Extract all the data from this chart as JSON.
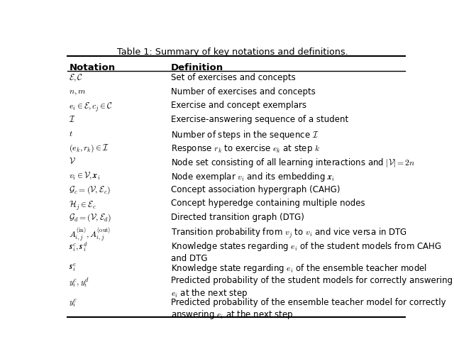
{
  "title": "Table 1: Summary of key notations and definitions.",
  "col1_header": "Notation",
  "col2_header": "Definition",
  "rows": [
    [
      "$\\mathcal{E}, \\mathcal{C}$",
      "Set of exercises and concepts"
    ],
    [
      "$n, m$",
      "Number of exercises and concepts"
    ],
    [
      "$e_i \\in \\mathcal{E}, c_j \\in \\mathcal{C}$",
      "Exercise and concept exemplars"
    ],
    [
      "$\\mathcal{I}$",
      "Exercise-answering sequence of a student"
    ],
    [
      "$t$",
      "Number of steps in the sequence $\\mathcal{I}$"
    ],
    [
      "$(e_k, r_k) \\in \\mathcal{I}$",
      "Response $r_k$ to exercise $e_k$ at step $k$"
    ],
    [
      "$\\mathcal{V}$",
      "Node set consisting of all learning interactions and $|\\mathcal{V}| = 2n$"
    ],
    [
      "$v_i \\in \\mathcal{V}, \\boldsymbol{x}_i$",
      "Node exemplar $v_i$ and its embedding $\\boldsymbol{x}_i$"
    ],
    [
      "$\\mathcal{G}_c = (\\mathcal{V}, \\mathcal{E}_c)$",
      "Concept association hypergraph (CAHG)"
    ],
    [
      "$\\mathcal{H}_j \\in \\mathcal{E}_c$",
      "Concept hyperedge containing multiple nodes"
    ],
    [
      "$\\mathcal{G}_d = (\\mathcal{V}, \\mathcal{E}_d)$",
      "Directed transition graph (DTG)"
    ],
    [
      "$A^{(\\mathrm{in})}_{i,j}, A^{(\\mathrm{out})}_{i,j}$",
      "Transition probability from $v_j$ to $v_i$ and vice versa in DTG"
    ],
    [
      "$\\boldsymbol{s}^c_i, \\boldsymbol{s}^d_i$",
      "Knowledge states regarding $e_i$ of the student models from CAHG\nand DTG"
    ],
    [
      "$\\boldsymbol{s}^e_i$",
      "Knowledge state regarding $e_i$ of the ensemble teacher model"
    ],
    [
      "$y^c_i, y^d_i$",
      "Predicted probability of the student models for correctly answering\n$e_i$ at the next step"
    ],
    [
      "$y^e_i$",
      "Predicted probability of the ensemble teacher model for correctly\nanswering $e_i$ at the next step"
    ]
  ],
  "bg_color": "#ffffff",
  "text_color": "#000000",
  "header_color": "#000000",
  "line_color": "#000000"
}
